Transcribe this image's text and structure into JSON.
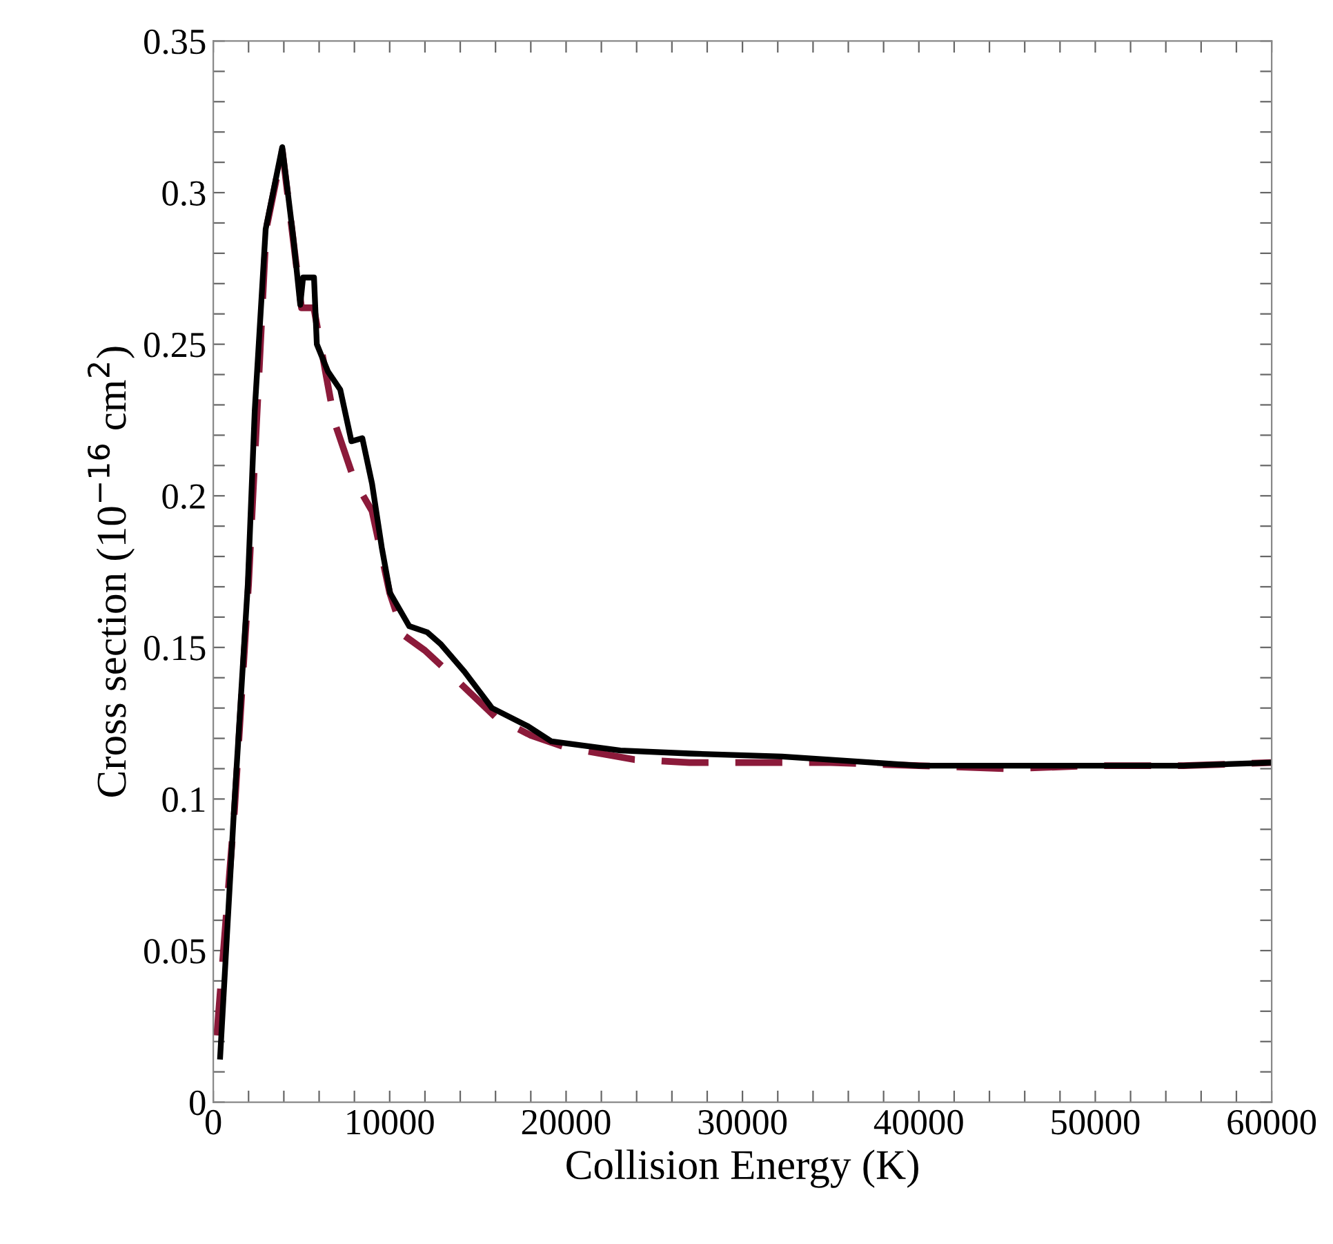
{
  "chart_data": {
    "type": "line",
    "xlabel": "Collision Energy (K)",
    "ylabel": "Cross section (10$^{−16}$ cm$^{2}$)",
    "xlim": [
      0,
      60000
    ],
    "ylim": [
      0,
      0.35
    ],
    "xticks": [
      0,
      {
        "value": 2000,
        "label": null
      },
      {
        "value": 4000,
        "label": null
      },
      {
        "value": 6000,
        "label": null
      },
      {
        "value": 8000,
        "label": null
      },
      10000,
      {
        "value": 12000,
        "label": null
      },
      {
        "value": 14000,
        "label": null
      },
      {
        "value": 16000,
        "label": null
      },
      {
        "value": 18000,
        "label": null
      },
      20000,
      {
        "value": 22000,
        "label": null
      },
      {
        "value": 24000,
        "label": null
      },
      {
        "value": 26000,
        "label": null
      },
      {
        "value": 28000,
        "label": null
      },
      30000,
      {
        "value": 32000,
        "label": null
      },
      {
        "value": 34000,
        "label": null
      },
      {
        "value": 36000,
        "label": null
      },
      {
        "value": 38000,
        "label": null
      },
      40000,
      {
        "value": 42000,
        "label": null
      },
      {
        "value": 44000,
        "label": null
      },
      {
        "value": 46000,
        "label": null
      },
      {
        "value": 48000,
        "label": null
      },
      50000,
      {
        "value": 52000,
        "label": null
      },
      {
        "value": 54000,
        "label": null
      },
      {
        "value": 56000,
        "label": null
      },
      {
        "value": 58000,
        "label": null
      },
      60000
    ],
    "yticks": [
      0,
      {
        "value": 0.01,
        "label": null
      },
      {
        "value": 0.02,
        "label": null
      },
      {
        "value": 0.03,
        "label": null
      },
      {
        "value": 0.04,
        "label": null
      },
      0.05,
      {
        "value": 0.06,
        "label": null
      },
      {
        "value": 0.07,
        "label": null
      },
      {
        "value": 0.08,
        "label": null
      },
      {
        "value": 0.09,
        "label": null
      },
      0.1,
      {
        "value": 0.11,
        "label": null
      },
      {
        "value": 0.12,
        "label": null
      },
      {
        "value": 0.13,
        "label": null
      },
      {
        "value": 0.14,
        "label": null
      },
      0.15,
      {
        "value": 0.16,
        "label": null
      },
      {
        "value": 0.17,
        "label": null
      },
      {
        "value": 0.18,
        "label": null
      },
      {
        "value": 0.19,
        "label": null
      },
      0.2,
      {
        "value": 0.21,
        "label": null
      },
      {
        "value": 0.22,
        "label": null
      },
      {
        "value": 0.23,
        "label": null
      },
      {
        "value": 0.24,
        "label": null
      },
      0.25,
      {
        "value": 0.26,
        "label": null
      },
      {
        "value": 0.27,
        "label": null
      },
      {
        "value": 0.28,
        "label": null
      },
      {
        "value": 0.29,
        "label": null
      },
      0.3,
      {
        "value": 0.31,
        "label": null
      },
      {
        "value": 0.32,
        "label": null
      },
      {
        "value": 0.33,
        "label": null
      },
      {
        "value": 0.34,
        "label": null
      },
      0.35
    ],
    "grid": false,
    "marker": "none",
    "series": [
      {
        "color": "#8b1a3a",
        "line_style": "dashed",
        "x": [
          200,
          1200,
          2000,
          3000,
          3910,
          4540,
          5000,
          5700,
          6890,
          8000,
          9000,
          10000,
          10800,
          12000,
          13850,
          16000,
          18000,
          20000,
          23870,
          27000,
          30900,
          35000,
          40000,
          45000,
          50000,
          55000,
          60000
        ],
        "values": [
          0.022,
          0.096,
          0.171,
          0.288,
          0.314,
          0.284,
          0.262,
          0.262,
          0.224,
          0.205,
          0.195,
          0.168,
          0.154,
          0.149,
          0.139,
          0.127,
          0.121,
          0.117,
          0.113,
          0.112,
          0.112,
          0.112,
          0.111,
          0.11,
          0.111,
          0.111,
          0.112
        ]
      },
      {
        "color": "#000000",
        "line_style": "solid",
        "x": [
          390,
          1170,
          1960,
          2350,
          2970,
          3910,
          4540,
          4930,
          5090,
          5710,
          5870,
          6500,
          7200,
          7830,
          8450,
          9000,
          9550,
          10020,
          11110,
          12130,
          12910,
          14240,
          15800,
          17840,
          19170,
          23080,
          27000,
          32240,
          37400,
          40000,
          45000,
          50000,
          55000,
          60000
        ],
        "values": [
          0.015,
          0.096,
          0.171,
          0.228,
          0.288,
          0.315,
          0.285,
          0.263,
          0.272,
          0.272,
          0.25,
          0.241,
          0.235,
          0.218,
          0.219,
          0.204,
          0.183,
          0.168,
          0.157,
          0.155,
          0.151,
          0.142,
          0.13,
          0.124,
          0.119,
          0.116,
          0.115,
          0.114,
          0.112,
          0.111,
          0.111,
          0.111,
          0.111,
          0.112
        ]
      }
    ]
  }
}
